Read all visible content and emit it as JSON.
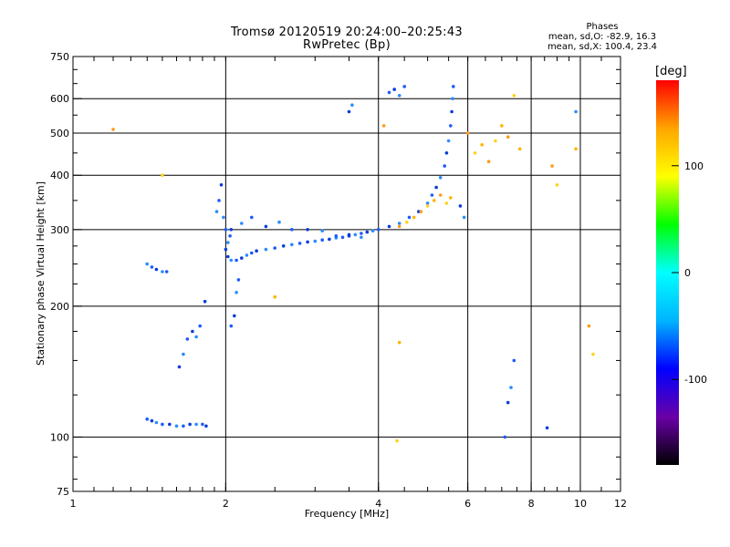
{
  "chart_data": {
    "type": "scatter",
    "title": "Tromsø 20120519 20:24:00–20:25:43",
    "subtitle": "RwPretec (Bp)",
    "stats_title": "Phases",
    "stats_lines": [
      "mean, sd,O: -82.9, 16.3",
      "mean, sd,X: 100.4, 23.4"
    ],
    "xlabel": "Frequency [MHz]",
    "ylabel": "Stationary phase Virtual Height [km]",
    "xscale": "log",
    "yscale": "log",
    "xlim": [
      1,
      12
    ],
    "ylim": [
      75,
      750
    ],
    "x_ticks": [
      1,
      2,
      4,
      6,
      8,
      10,
      12
    ],
    "y_ticks": [
      75,
      100,
      200,
      300,
      400,
      500,
      600,
      750
    ],
    "grid": true,
    "colorbar": {
      "label": "[deg]",
      "range": [
        -180,
        180
      ],
      "ticks": [
        100,
        0,
        -100
      ],
      "colors": [
        "#000000",
        "#6a00a8",
        "#0000ff",
        "#00b4ff",
        "#00ffff",
        "#00ff00",
        "#ffff00",
        "#ffa500",
        "#ff0000"
      ]
    },
    "series": [
      {
        "values": [
          [
            1.4,
            110
          ],
          [
            1.43,
            109
          ],
          [
            1.46,
            108
          ],
          [
            1.5,
            107
          ],
          [
            1.55,
            107
          ],
          [
            1.6,
            106
          ],
          [
            1.65,
            106
          ],
          [
            1.7,
            107
          ],
          [
            1.75,
            107
          ],
          [
            1.8,
            107
          ],
          [
            1.83,
            106
          ],
          [
            1.4,
            250
          ],
          [
            1.43,
            246
          ],
          [
            1.46,
            243
          ],
          [
            1.5,
            240
          ],
          [
            1.53,
            240
          ],
          [
            1.62,
            145
          ],
          [
            1.65,
            155
          ],
          [
            1.68,
            168
          ],
          [
            1.72,
            175
          ],
          [
            1.75,
            170
          ],
          [
            1.78,
            180
          ],
          [
            1.82,
            205
          ],
          [
            1.92,
            330
          ],
          [
            1.94,
            350
          ],
          [
            1.96,
            380
          ],
          [
            1.98,
            320
          ],
          [
            2.0,
            300
          ],
          [
            2.02,
            260
          ],
          [
            2.05,
            255
          ],
          [
            2.1,
            255
          ],
          [
            2.15,
            258
          ],
          [
            2.2,
            262
          ],
          [
            2.25,
            265
          ],
          [
            2.3,
            268
          ],
          [
            2.4,
            270
          ],
          [
            2.5,
            272
          ],
          [
            2.6,
            275
          ],
          [
            2.7,
            277
          ],
          [
            2.8,
            279
          ],
          [
            2.9,
            281
          ],
          [
            3.0,
            282
          ],
          [
            3.1,
            284
          ],
          [
            3.2,
            285
          ],
          [
            3.3,
            287
          ],
          [
            3.4,
            288
          ],
          [
            3.5,
            290
          ],
          [
            3.6,
            292
          ],
          [
            3.7,
            294
          ],
          [
            3.8,
            296
          ],
          [
            3.9,
            298
          ],
          [
            4.0,
            300
          ],
          [
            2.05,
            300
          ],
          [
            2.15,
            310
          ],
          [
            2.25,
            320
          ],
          [
            2.4,
            305
          ],
          [
            2.55,
            312
          ],
          [
            2.7,
            300
          ],
          [
            2.9,
            300
          ],
          [
            3.1,
            298
          ],
          [
            3.3,
            290
          ],
          [
            3.5,
            292
          ],
          [
            3.7,
            288
          ],
          [
            2.05,
            180
          ],
          [
            2.08,
            190
          ],
          [
            2.1,
            215
          ],
          [
            2.12,
            230
          ],
          [
            2.0,
            270
          ],
          [
            2.02,
            280
          ],
          [
            2.04,
            290
          ],
          [
            4.2,
            305
          ],
          [
            4.4,
            310
          ],
          [
            4.6,
            320
          ],
          [
            4.8,
            330
          ],
          [
            5.0,
            345
          ],
          [
            5.1,
            360
          ],
          [
            5.2,
            375
          ],
          [
            5.3,
            395
          ],
          [
            5.4,
            420
          ],
          [
            5.45,
            450
          ],
          [
            5.5,
            480
          ],
          [
            5.55,
            520
          ],
          [
            5.58,
            560
          ],
          [
            5.6,
            600
          ],
          [
            5.62,
            640
          ],
          [
            3.5,
            560
          ],
          [
            3.55,
            580
          ],
          [
            4.2,
            620
          ],
          [
            4.3,
            630
          ],
          [
            4.4,
            610
          ],
          [
            4.5,
            640
          ],
          [
            5.8,
            340
          ],
          [
            5.9,
            320
          ],
          [
            7.1,
            100
          ],
          [
            7.2,
            120
          ],
          [
            7.3,
            130
          ],
          [
            7.4,
            150
          ],
          [
            8.6,
            105
          ],
          [
            9.8,
            560
          ]
        ]
      },
      {
        "values": [
          [
            4.4,
            305
          ],
          [
            4.55,
            312
          ],
          [
            4.7,
            320
          ],
          [
            4.85,
            330
          ],
          [
            5.0,
            340
          ],
          [
            5.15,
            350
          ],
          [
            5.3,
            360
          ],
          [
            5.45,
            345
          ],
          [
            5.55,
            355
          ],
          [
            1.2,
            510
          ],
          [
            1.5,
            400
          ],
          [
            2.5,
            210
          ],
          [
            4.1,
            520
          ],
          [
            4.35,
            98
          ],
          [
            4.4,
            165
          ],
          [
            6.0,
            500
          ],
          [
            6.2,
            450
          ],
          [
            6.4,
            470
          ],
          [
            6.6,
            430
          ],
          [
            6.8,
            480
          ],
          [
            7.0,
            520
          ],
          [
            7.2,
            490
          ],
          [
            7.4,
            610
          ],
          [
            7.6,
            460
          ],
          [
            8.8,
            420
          ],
          [
            9.0,
            380
          ],
          [
            9.8,
            460
          ],
          [
            10.4,
            180
          ],
          [
            10.6,
            155
          ]
        ]
      }
    ]
  }
}
